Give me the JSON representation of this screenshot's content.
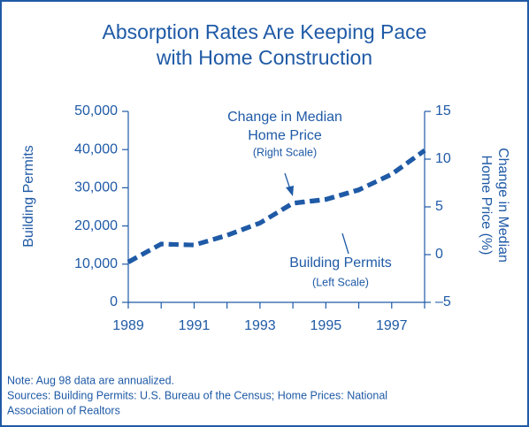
{
  "chart_data": {
    "type": "line",
    "title": [
      "Absorption Rates Are Keeping Pace",
      "with Home Construction"
    ],
    "x": [
      1989,
      1990,
      1991,
      1992,
      1993,
      1994,
      1995,
      1996,
      1997,
      1998
    ],
    "series": [
      {
        "name": "Building Permits",
        "color": "#1f5aa6",
        "axis": "y",
        "values": [
          10600,
          15300,
          15000,
          17600,
          20800,
          25900,
          26900,
          29400,
          33600,
          39800
        ]
      },
      {
        "name": "Change in Median Home Price",
        "color": "#1f5aa6",
        "axis": "y2",
        "values": [
          -0.8,
          1.1,
          1.0,
          2.0,
          3.3,
          5.4,
          5.8,
          6.8,
          8.4,
          10.9
        ]
      }
    ],
    "xlim": [
      1989,
      1998
    ],
    "xticks": [
      1989,
      1991,
      1993,
      1995,
      1997
    ],
    "x_minor_ticks": [
      1990,
      1992,
      1994,
      1996,
      1998
    ],
    "ylim": [
      0,
      50000
    ],
    "yticks": [
      0,
      {
        "value": 10000,
        "label": "10,000"
      },
      {
        "value": 20000,
        "label": "20,000"
      },
      {
        "value": 30000,
        "label": "30,000"
      },
      {
        "value": 40000,
        "label": "40,000"
      },
      {
        "value": 50000,
        "label": "50,000"
      }
    ],
    "y2lim": [
      -5,
      15
    ],
    "y2ticks": [
      {
        "value": -5,
        "label": "–5"
      },
      0,
      5,
      10,
      15
    ],
    "ylabel": "Building Permits",
    "y2label": [
      "Change in Median",
      "Home Price (%)"
    ],
    "annotations": [
      {
        "lines": [
          "Change in Median",
          "Home Price",
          "(Right Scale)"
        ]
      },
      {
        "lines": [
          "Building Permits",
          "(Left Scale)"
        ]
      }
    ],
    "notes": [
      "Note: Aug 98 data are annualized.",
      "Sources: Building Permits: U.S. Bureau of the Census; Home Prices: National",
      "Association of Realtors"
    ]
  }
}
